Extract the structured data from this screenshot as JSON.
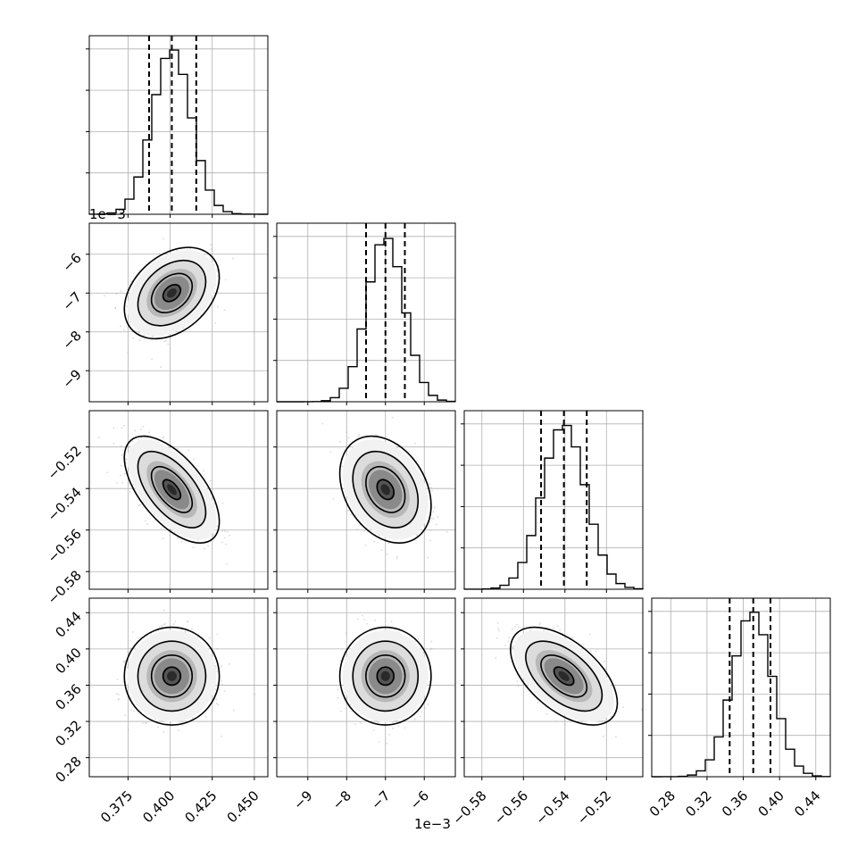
{
  "chart_data": {
    "type": "corner",
    "grid": true,
    "parameters": [
      {
        "range": [
          0.352,
          0.458
        ],
        "ticks": [
          0.375,
          0.4,
          0.425,
          0.45
        ],
        "tick_labels": [
          "0.375",
          "0.400",
          "0.425",
          "0.450"
        ],
        "quantiles": [
          0.3875,
          0.401,
          0.4155
        ],
        "mean": 0.401,
        "sd": 0.0115,
        "hist_ymax": 1.08,
        "offset_text": ""
      },
      {
        "range": [
          -9.8,
          -5.2
        ],
        "ticks": [
          -9,
          -8,
          -7,
          -6
        ],
        "tick_labels": [
          "−9",
          "−8",
          "−7",
          "−6"
        ],
        "quantiles": [
          -7.5,
          -7.0,
          -6.5
        ],
        "mean": -7.0,
        "sd": 0.48,
        "hist_ymax": 1.08,
        "offset_text": "1e−3"
      },
      {
        "range": [
          -0.5885,
          -0.5025
        ],
        "ticks": [
          -0.58,
          -0.56,
          -0.54,
          -0.52
        ],
        "tick_labels": [
          "−0.58",
          "−0.56",
          "−0.54",
          "−0.52"
        ],
        "quantiles": [
          -0.5515,
          -0.5405,
          -0.5295
        ],
        "mean": -0.5405,
        "sd": 0.0105,
        "hist_ymax": 1.08,
        "offset_text": ""
      },
      {
        "range": [
          0.259,
          0.456
        ],
        "ticks": [
          0.28,
          0.32,
          0.36,
          0.4,
          0.44
        ],
        "tick_labels": [
          "0.28",
          "0.32",
          "0.36",
          "0.40",
          "0.44"
        ],
        "quantiles": [
          0.345,
          0.371,
          0.39
        ],
        "mean": 0.37,
        "sd": 0.022,
        "hist_ymax": 1.08,
        "offset_text": ""
      }
    ],
    "correlations": {
      "1-0": 0.35,
      "2-0": -0.6,
      "2-1": -0.3,
      "3-0": 0.0,
      "3-1": 0.0,
      "3-2": -0.55
    },
    "colors": {
      "line": "#000000",
      "grid": "#b0b0b0",
      "samples": "#aaaaaa"
    }
  }
}
